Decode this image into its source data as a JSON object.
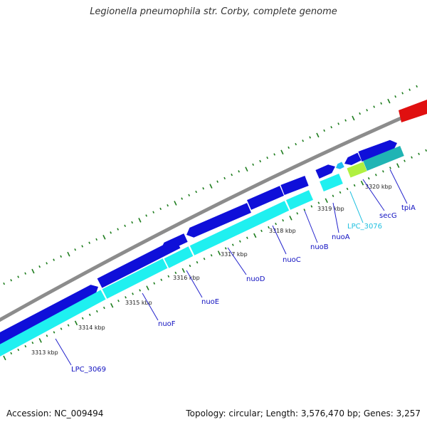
{
  "title": "Legionella pneumophila str. Corby, complete genome",
  "footer": {
    "accession": "Accession: NC_009494",
    "summary": "Topology: circular; Length: 3,576,470 bp; Genes: 3,257"
  },
  "colors": {
    "backbone": "#8c8c8c",
    "forward_gene": "#0f0fd9",
    "reverse_gene": "#1ff0f0",
    "tick_mark": "#1e7d1e",
    "label_line": "#2222cc",
    "highlight_gene": "#e01010",
    "yellowgreen_gene": "#b0f040",
    "teal_gene": "#20b4b4"
  },
  "scale_ticks": [
    "3313 kbp",
    "3314 kbp",
    "3315 kbp",
    "3316 kbp",
    "3317 kbp",
    "3318 kbp",
    "3319 kbp",
    "3320 kbp"
  ],
  "gene_labels": [
    {
      "name": "LPC_3069",
      "color": "#1010c0"
    },
    {
      "name": "nuoF",
      "color": "#1010c0"
    },
    {
      "name": "nuoE",
      "color": "#1010c0"
    },
    {
      "name": "nuoD",
      "color": "#1010c0"
    },
    {
      "name": "nuoC",
      "color": "#1010c0"
    },
    {
      "name": "nuoB",
      "color": "#1010c0"
    },
    {
      "name": "nuoA",
      "color": "#1010c0"
    },
    {
      "name": "LPC_3076",
      "color": "#20c0e0"
    },
    {
      "name": "secG",
      "color": "#1010c0"
    },
    {
      "name": "tpiA",
      "color": "#1010c0"
    }
  ]
}
